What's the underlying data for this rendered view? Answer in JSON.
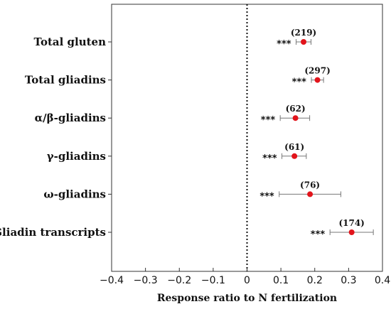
{
  "chart_data": {
    "type": "scatter",
    "categories": [
      "Total gluten",
      "Total gliadins",
      "α/β-gliadins",
      "γ-gliadins",
      "ω-gliadins",
      "Gliadin transcripts"
    ],
    "values": [
      0.167,
      0.208,
      0.143,
      0.14,
      0.186,
      0.309
    ],
    "ci_low": [
      0.145,
      0.19,
      0.098,
      0.103,
      0.095,
      0.245
    ],
    "ci_high": [
      0.189,
      0.226,
      0.185,
      0.175,
      0.277,
      0.373
    ],
    "n_labels": [
      "(219)",
      "(297)",
      "(62)",
      "(61)",
      "(76)",
      "(174)"
    ],
    "significance": [
      "***",
      "***",
      "***",
      "***",
      "***",
      "***"
    ],
    "xlabel": "Response ratio to N fertilization",
    "xlim": [
      -0.4,
      0.4
    ],
    "xticks": [
      -0.4,
      -0.3,
      -0.2,
      -0.1,
      0,
      0.1,
      0.2,
      0.3,
      0.4
    ],
    "xtick_labels": [
      "−0.4",
      "−0.3",
      "−0.2",
      "−0.1",
      "0",
      "0.1",
      "0.2",
      "0.3",
      "0.4"
    ],
    "reference_line": 0,
    "grid": false,
    "colors": {
      "point": "#e2141b",
      "errorbar": "#777777",
      "axis": "#333333",
      "text": "#111111"
    }
  }
}
